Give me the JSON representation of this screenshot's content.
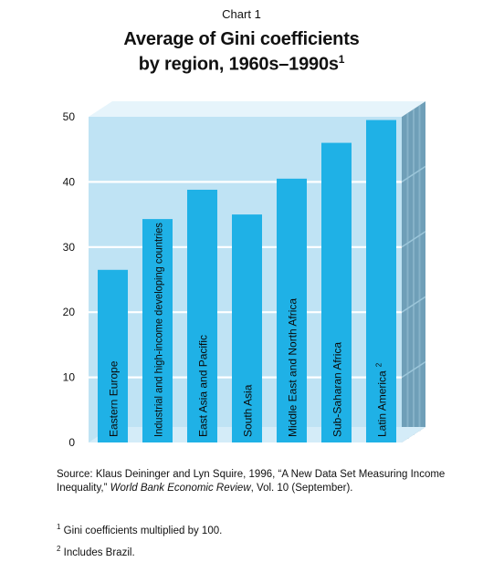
{
  "chart_label": "Chart 1",
  "title_line1": "Average of Gini coefficients",
  "title_line2": "by region, 1960s–1990s",
  "title_footnote_mark": "1",
  "chart_data": {
    "type": "bar",
    "title": "Average of Gini coefficients by region, 1960s–1990s",
    "categories": [
      "Eastern Europe",
      "Industrial and high-income developing countries",
      "East Asia and Pacific",
      "South Asia",
      "Middle East and North Africa",
      "Sub-Saharan Africa",
      "Latin America"
    ],
    "category_footnotes": [
      "",
      "",
      "",
      "",
      "",
      "",
      "2"
    ],
    "values": [
      26.5,
      34.3,
      38.8,
      35.0,
      40.5,
      46.0,
      49.5
    ],
    "ylim": [
      0,
      50
    ],
    "yticks": [
      "0",
      "10",
      "20",
      "30",
      "40",
      "50"
    ],
    "grid": true,
    "style": "3d-box",
    "colors": {
      "bar": "#1fb1e6",
      "panel": "#bfe3f4",
      "side_wall": "#6f9fb8",
      "bottom_face": "#d4ecf8",
      "grid": "#ffffff"
    }
  },
  "source": {
    "prefix": "Source: Klaus Deininger and Lyn Squire, 1996, “A New Data Set Measuring Income Inequality,” ",
    "journal": "World Bank Economic Review",
    "suffix": ", Vol. 10 (September)."
  },
  "footnotes": [
    {
      "mark": "1",
      "text": "Gini coefficients multiplied by 100."
    },
    {
      "mark": "2",
      "text": "Includes Brazil."
    }
  ]
}
